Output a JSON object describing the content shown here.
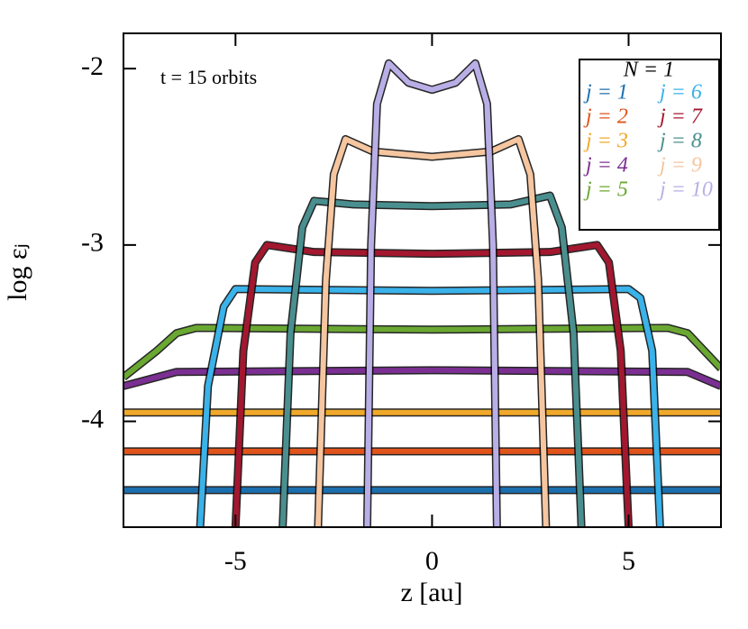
{
  "chart_data": {
    "type": "line",
    "x_label": "z [au]",
    "y_label": "log εⱼ",
    "annotation": "t = 15 orbits",
    "legend_title": "N = 1",
    "xlim": [
      -7.85,
      7.35
    ],
    "ylim": [
      -4.6,
      -1.8
    ],
    "xticks": [
      -5,
      0,
      5
    ],
    "yticks": [
      -4,
      -3,
      -2
    ],
    "series": [
      {
        "name": "j = 1",
        "color": "#1b6fae",
        "x": [
          -7.85,
          0,
          7.35
        ],
        "values": [
          -4.39,
          -4.39,
          -4.39
        ]
      },
      {
        "name": "j = 2",
        "color": "#e0531b",
        "x": [
          -7.85,
          0,
          7.35
        ],
        "values": [
          -4.17,
          -4.17,
          -4.17
        ]
      },
      {
        "name": "j = 3",
        "color": "#f0a92a",
        "x": [
          -7.85,
          0,
          7.35
        ],
        "values": [
          -3.95,
          -3.95,
          -3.95
        ]
      },
      {
        "name": "j = 4",
        "color": "#7b2f92",
        "x": [
          -7.85,
          -6.5,
          0,
          6.5,
          7.35
        ],
        "values": [
          -3.8,
          -3.72,
          -3.71,
          -3.72,
          -3.8
        ]
      },
      {
        "name": "j = 5",
        "color": "#6aa832",
        "x": [
          -7.85,
          -7,
          -6.5,
          -6,
          0,
          6,
          6.5,
          7.35
        ],
        "values": [
          -3.75,
          -3.6,
          -3.5,
          -3.47,
          -3.48,
          -3.47,
          -3.5,
          -3.7
        ]
      },
      {
        "name": "j = 6",
        "color": "#3ab2ea",
        "x": [
          -5.9,
          -5.7,
          -5.3,
          -5,
          0,
          5,
          5.3,
          5.6,
          5.8
        ],
        "values": [
          -4.6,
          -3.8,
          -3.35,
          -3.25,
          -3.26,
          -3.25,
          -3.3,
          -3.6,
          -4.6
        ]
      },
      {
        "name": "j = 7",
        "color": "#a3172f",
        "x": [
          -5,
          -4.8,
          -4.5,
          -4.2,
          -3,
          0,
          3,
          4.2,
          4.5,
          4.8,
          5
        ],
        "values": [
          -4.6,
          -3.6,
          -3.1,
          -3.0,
          -3.04,
          -3.05,
          -3.04,
          -3.0,
          -3.1,
          -3.6,
          -4.6
        ]
      },
      {
        "name": "j = 8",
        "color": "#4a8f8f",
        "x": [
          -3.8,
          -3.6,
          -3.3,
          -3.0,
          -2,
          0,
          2,
          3.0,
          3.3,
          3.6,
          3.8
        ],
        "values": [
          -4.6,
          -3.5,
          -2.9,
          -2.75,
          -2.77,
          -2.78,
          -2.77,
          -2.72,
          -2.9,
          -3.5,
          -4.6
        ]
      },
      {
        "name": "j = 9",
        "color": "#f5c6a0",
        "x": [
          -2.9,
          -2.7,
          -2.5,
          -2.2,
          -1.5,
          0,
          1.5,
          2.2,
          2.5,
          2.7,
          2.9
        ],
        "values": [
          -4.6,
          -3.2,
          -2.6,
          -2.4,
          -2.47,
          -2.5,
          -2.47,
          -2.4,
          -2.6,
          -3.2,
          -4.6
        ]
      },
      {
        "name": "j = 10",
        "color": "#b9aee6",
        "x": [
          -1.65,
          -1.55,
          -1.4,
          -1.1,
          -0.6,
          0,
          0.6,
          1.1,
          1.4,
          1.55,
          1.65
        ],
        "values": [
          -4.6,
          -3.0,
          -2.2,
          -1.97,
          -2.08,
          -2.12,
          -2.08,
          -1.97,
          -2.2,
          -3.0,
          -4.6
        ]
      }
    ]
  }
}
